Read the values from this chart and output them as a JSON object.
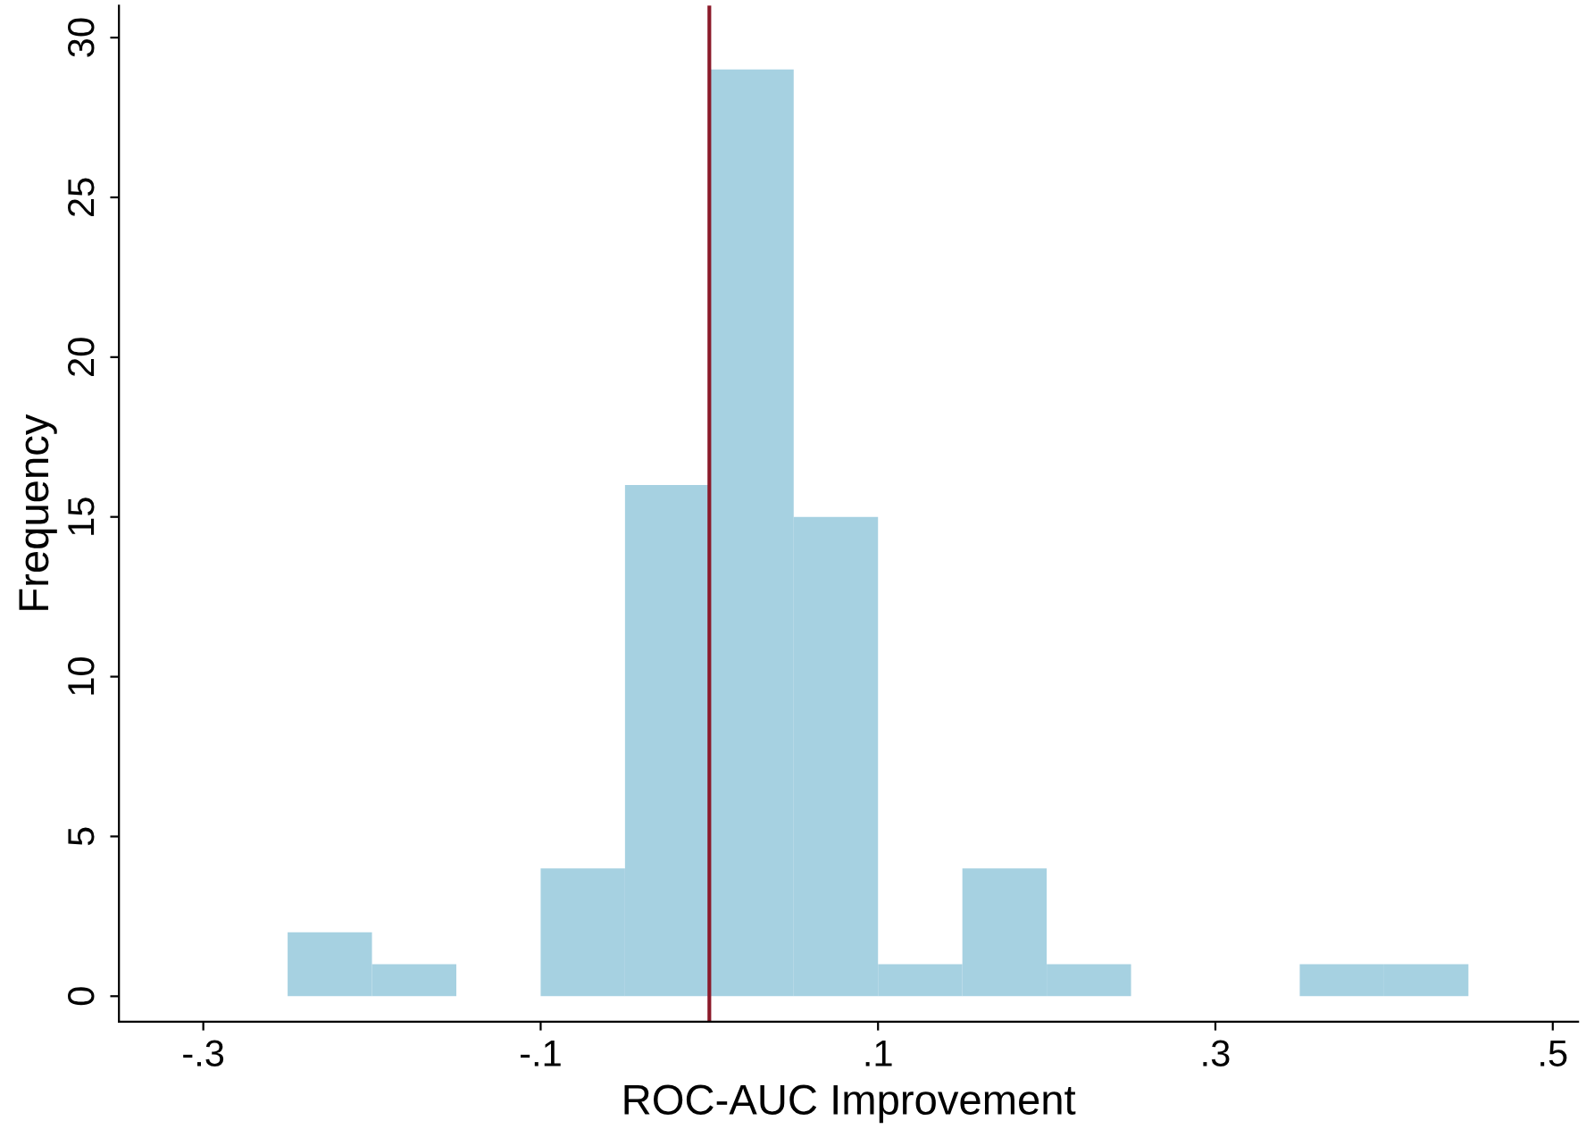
{
  "chart_data": {
    "type": "histogram",
    "xlabel": "ROC-AUC Improvement",
    "ylabel": "Frequency",
    "bins": [
      -0.25,
      -0.2,
      -0.15,
      -0.1,
      -0.05,
      0,
      0.05,
      0.1,
      0.15,
      0.2,
      0.25,
      0.3,
      0.35,
      0.4,
      0.45
    ],
    "values": [
      2,
      1,
      0,
      4,
      16,
      29,
      15,
      1,
      4,
      1,
      0,
      0,
      1,
      1
    ],
    "color": "#a6d1e1",
    "xlim": [
      -0.35,
      0.515
    ],
    "ylim": [
      -0.8,
      31
    ],
    "xticks": [
      {
        "value": -0.3,
        "label": "-.3"
      },
      {
        "value": -0.1,
        "label": "-.1"
      },
      {
        "value": 0.1,
        "label": ".1"
      },
      {
        "value": 0.3,
        "label": ".3"
      },
      {
        "value": 0.5,
        "label": ".5"
      }
    ],
    "yticks": [
      0,
      5,
      10,
      15,
      20,
      25,
      30
    ],
    "ref_lines": [
      {
        "axis": "x",
        "value": 0,
        "color": "#8b1a2a"
      }
    ],
    "grid": false
  }
}
